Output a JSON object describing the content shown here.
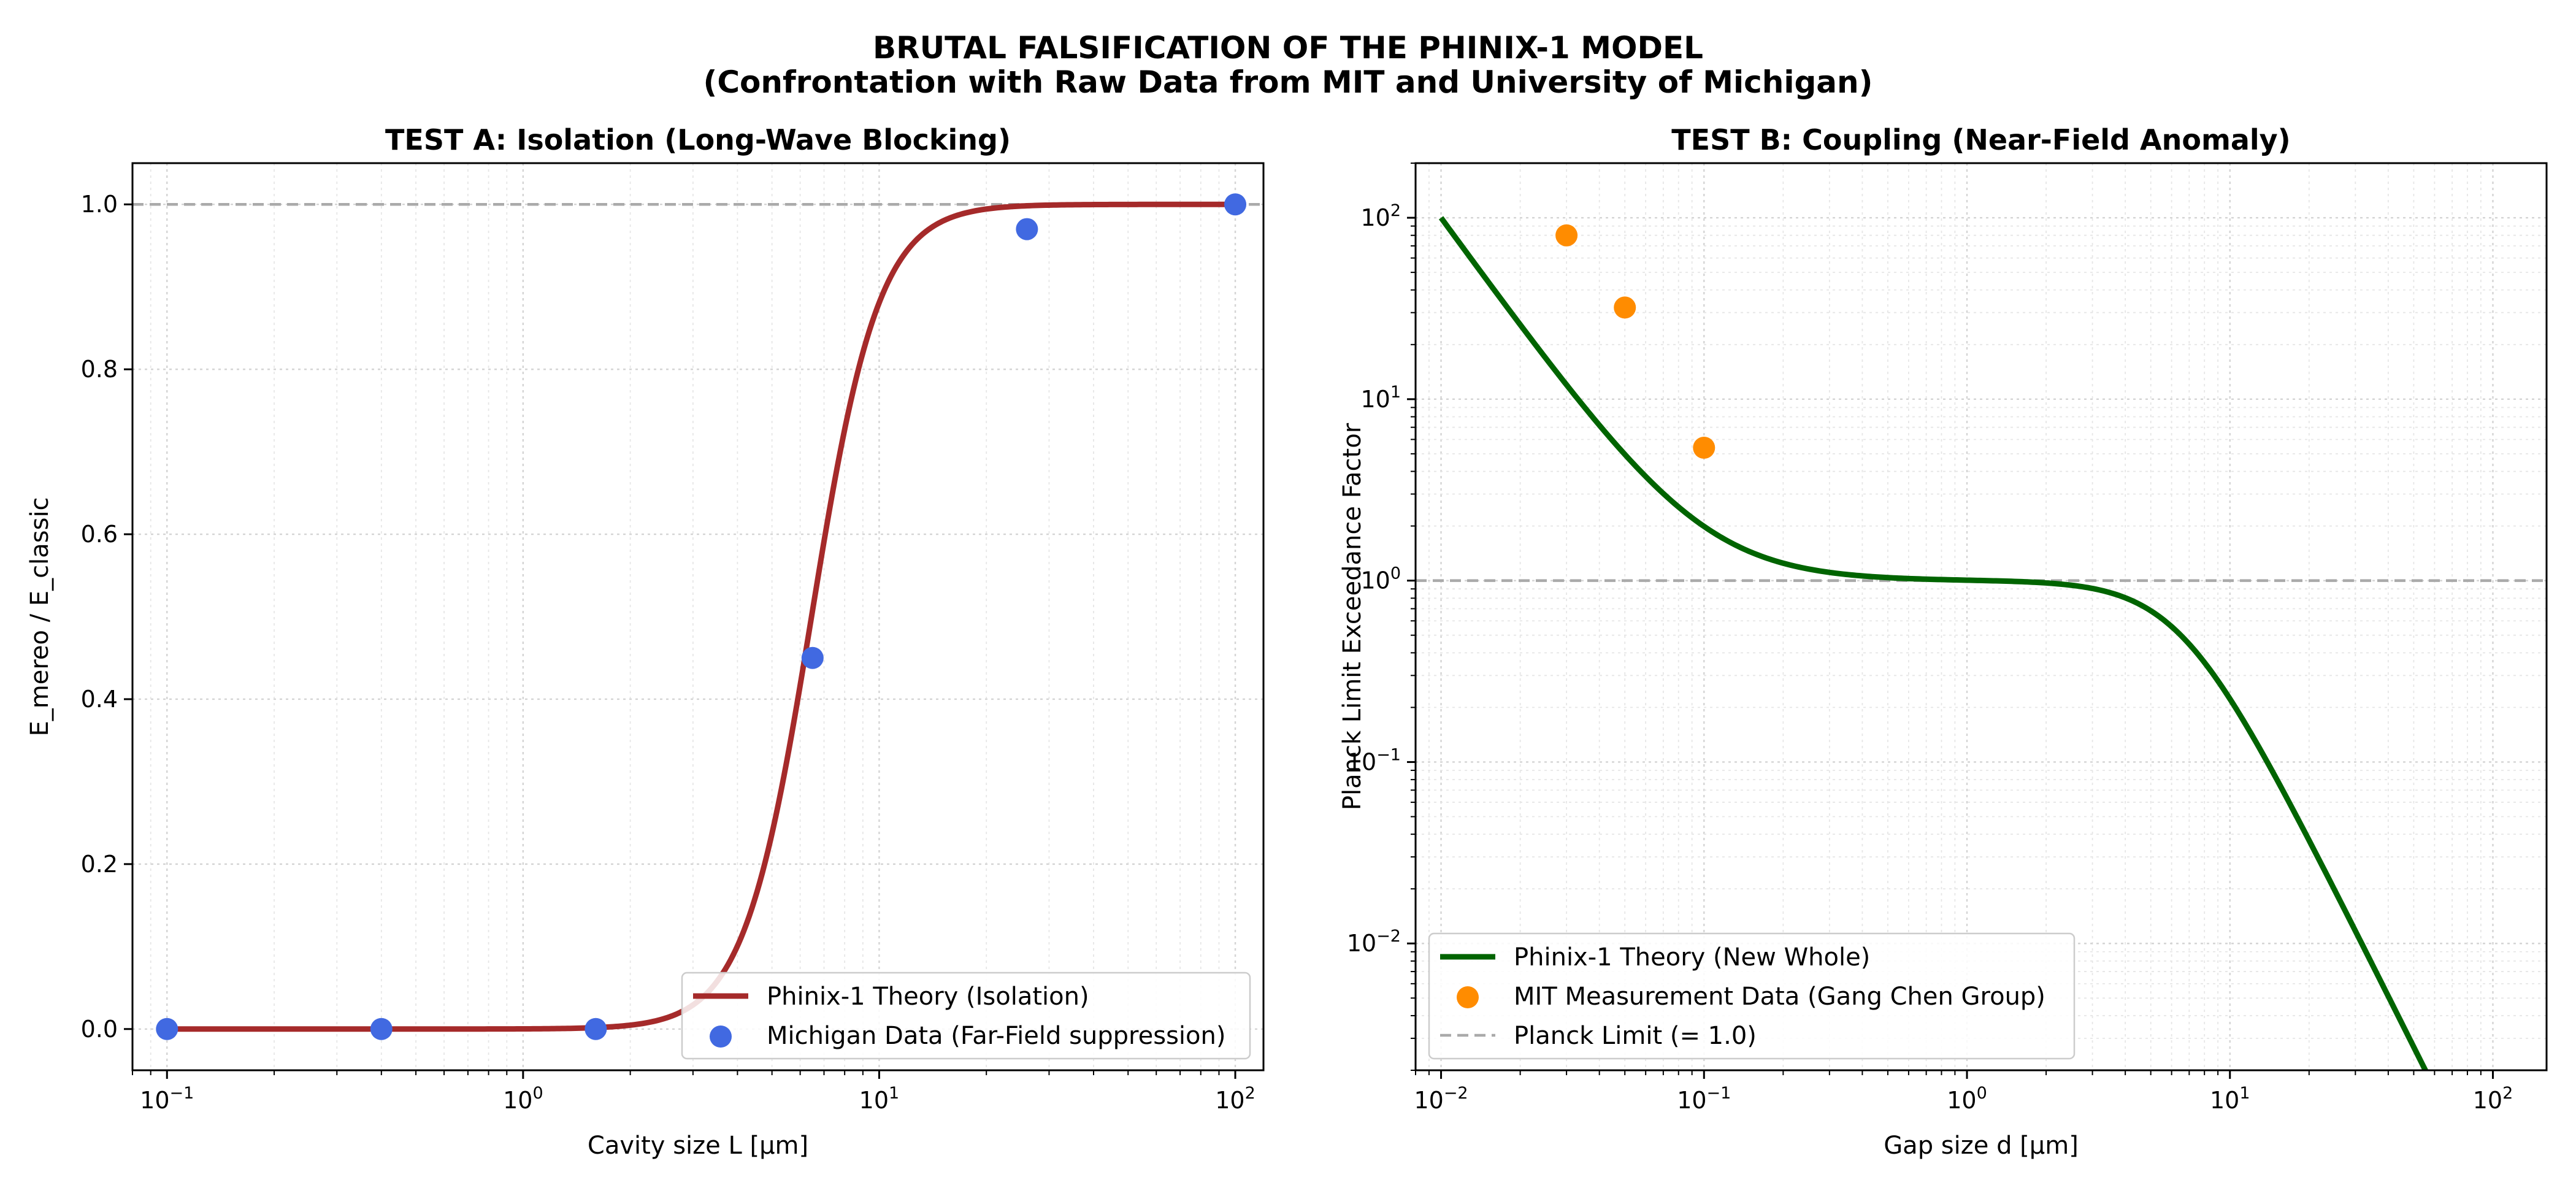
{
  "figure": {
    "title_line1": "BRUTAL FALSIFICATION OF THE PHINIX-1 MODEL",
    "title_line2": "(Confrontation with Raw Data from MIT and University of Michigan)"
  },
  "chart_data": [
    {
      "type": "line",
      "title": "TEST A: Isolation (Long-Wave Blocking)",
      "xlabel": "Cavity size L [µm]",
      "ylabel": "E_mereo / E_classic",
      "xscale": "log",
      "yscale": "linear",
      "xlim": [
        0.08,
        120
      ],
      "ylim": [
        -0.05,
        1.05
      ],
      "xticks": [
        {
          "base": "10",
          "exp": "−1",
          "value": 0.1
        },
        {
          "base": "10",
          "exp": "0",
          "value": 1
        },
        {
          "base": "10",
          "exp": "1",
          "value": 10
        },
        {
          "base": "10",
          "exp": "2",
          "value": 100
        }
      ],
      "yticks": [
        "0.0",
        "0.2",
        "0.4",
        "0.6",
        "0.8",
        "1.0"
      ],
      "grid": true,
      "reference_lines": [
        {
          "y": 1.0,
          "style": "dashed",
          "color": "#aaaaaa"
        }
      ],
      "series": [
        {
          "name": "Phinix-1 Theory (Isolation)",
          "kind": "line",
          "color": "#a52a2a",
          "model": "sigmoid in log10(x): 1/(1+exp(-(log10(x)-0.81)/0.095))",
          "x_range": [
            0.1,
            100
          ]
        },
        {
          "name": "Michigan Data (Far-Field suppression)",
          "kind": "scatter",
          "color": "#4169e1",
          "x": [
            0.1,
            0.4,
            1.6,
            6.5,
            26,
            100
          ],
          "y": [
            0.0,
            0.0,
            0.0,
            0.45,
            0.97,
            1.0
          ]
        }
      ],
      "legend": "lower-right"
    },
    {
      "type": "line",
      "title": "TEST B: Coupling (Near-Field Anomaly)",
      "xlabel": "Gap size d [µm]",
      "ylabel": "Planck Limit Exceedance Factor",
      "xscale": "log",
      "yscale": "log",
      "xlim": [
        0.008,
        160
      ],
      "ylim": [
        0.002,
        200
      ],
      "xticks": [
        {
          "base": "10",
          "exp": "−2",
          "value": 0.01
        },
        {
          "base": "10",
          "exp": "−1",
          "value": 0.1
        },
        {
          "base": "10",
          "exp": "0",
          "value": 1
        },
        {
          "base": "10",
          "exp": "1",
          "value": 10
        },
        {
          "base": "10",
          "exp": "2",
          "value": 100
        }
      ],
      "yticks": [
        {
          "base": "10",
          "exp": "−2",
          "value": 0.01
        },
        {
          "base": "10",
          "exp": "−1",
          "value": 0.1
        },
        {
          "base": "10",
          "exp": "0",
          "value": 1
        },
        {
          "base": "10",
          "exp": "1",
          "value": 10
        },
        {
          "base": "10",
          "exp": "2",
          "value": 100
        }
      ],
      "grid": true,
      "reference_lines": [
        {
          "y": 1.0,
          "style": "dashed",
          "color": "#aaaaaa"
        }
      ],
      "series": [
        {
          "name": "Phinix-1 Theory (New Whole)",
          "kind": "line",
          "color": "#006400",
          "model": "(1 + (0.01/x)^2*99) * 1/(1 + (x/6.5)^2.9)",
          "x_range": [
            0.01,
            100
          ]
        },
        {
          "name": "MIT Measurement Data (Gang Chen Group)",
          "kind": "scatter",
          "color": "#ff8c00",
          "x": [
            0.03,
            0.05,
            0.1
          ],
          "y": [
            80,
            32,
            5.4
          ]
        },
        {
          "name": "Planck Limit (= 1.0)",
          "kind": "reference",
          "color": "#aaaaaa"
        }
      ],
      "legend": "lower-left"
    }
  ]
}
